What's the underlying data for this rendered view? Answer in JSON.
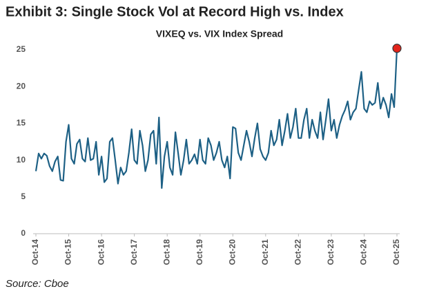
{
  "chart_data": {
    "type": "line",
    "title": "Exhibit 3: Single Stock Vol at Record High vs. Index",
    "subtitle": "VIXEQ vs. VIX Index Spread",
    "source": "Source: Cboe",
    "categories": [
      "Oct-14",
      null,
      null,
      null,
      null,
      null,
      null,
      null,
      null,
      null,
      null,
      null,
      "Oct-15",
      null,
      null,
      null,
      null,
      null,
      null,
      null,
      null,
      null,
      null,
      null,
      "Oct-16",
      null,
      null,
      null,
      null,
      null,
      null,
      null,
      null,
      null,
      null,
      null,
      "Oct-17",
      null,
      null,
      null,
      null,
      null,
      null,
      null,
      null,
      null,
      null,
      null,
      "Oct-18",
      null,
      null,
      null,
      null,
      null,
      null,
      null,
      null,
      null,
      null,
      null,
      "Oct-19",
      null,
      null,
      null,
      null,
      null,
      null,
      null,
      null,
      null,
      null,
      null,
      "Oct-20",
      null,
      null,
      null,
      null,
      null,
      null,
      null,
      null,
      null,
      null,
      null,
      "Oct-21",
      null,
      null,
      null,
      null,
      null,
      null,
      null,
      null,
      null,
      null,
      null,
      "Oct-22",
      null,
      null,
      null,
      null,
      null,
      null,
      null,
      null,
      null,
      null,
      null,
      "Oct-23",
      null,
      null,
      null,
      null,
      null,
      null,
      null,
      null,
      null,
      null,
      null,
      "Oct-24",
      null,
      null,
      null,
      null,
      null,
      null,
      null,
      null,
      null,
      null,
      null,
      "Oct-25"
    ],
    "series": [
      {
        "name": "VIXEQ vs. VIX Index Spread",
        "color": "#1d6085",
        "highlight_color": "#e3241b",
        "values": [
          8.5,
          10.9,
          10.2,
          10.9,
          10.6,
          9.2,
          8.5,
          9.8,
          10.5,
          7.3,
          7.2,
          12.5,
          14.8,
          10.2,
          9.5,
          12.2,
          12.8,
          10.2,
          9.8,
          13,
          10,
          10.2,
          12.5,
          8,
          10.5,
          7,
          7.5,
          12.5,
          13,
          10,
          6.8,
          9,
          8,
          8.5,
          11,
          14.2,
          10,
          9.5,
          14,
          12,
          8.5,
          10,
          13.5,
          14,
          9.5,
          15.8,
          6.2,
          10.5,
          12.5,
          9,
          8,
          13.8,
          11,
          8,
          10,
          12.8,
          9.5,
          10,
          10.8,
          9.5,
          12.8,
          10,
          9.5,
          13,
          12,
          10,
          11,
          12.5,
          10,
          9,
          10.5,
          7.5,
          14.5,
          14.3,
          11,
          10,
          12,
          14,
          12.5,
          10.5,
          13,
          15,
          11.5,
          10.5,
          10,
          11,
          14,
          12,
          12.8,
          15.5,
          12,
          14,
          16.3,
          13,
          14.5,
          17,
          13,
          13,
          15.5,
          17,
          13,
          15.5,
          14,
          13,
          16.5,
          12.8,
          15.5,
          18.3,
          14,
          15.5,
          13,
          14.8,
          16,
          16.8,
          18,
          15.5,
          16.5,
          17,
          19.5,
          22,
          17,
          16.5,
          18,
          17.5,
          17.8,
          20.5,
          17,
          18.5,
          17.5,
          15.8,
          19,
          17.2,
          25.2
        ]
      }
    ],
    "ylim": [
      0,
      25
    ],
    "yticks": [
      0,
      5,
      10,
      15,
      20,
      25
    ],
    "grid": false,
    "highlight_last": true
  }
}
